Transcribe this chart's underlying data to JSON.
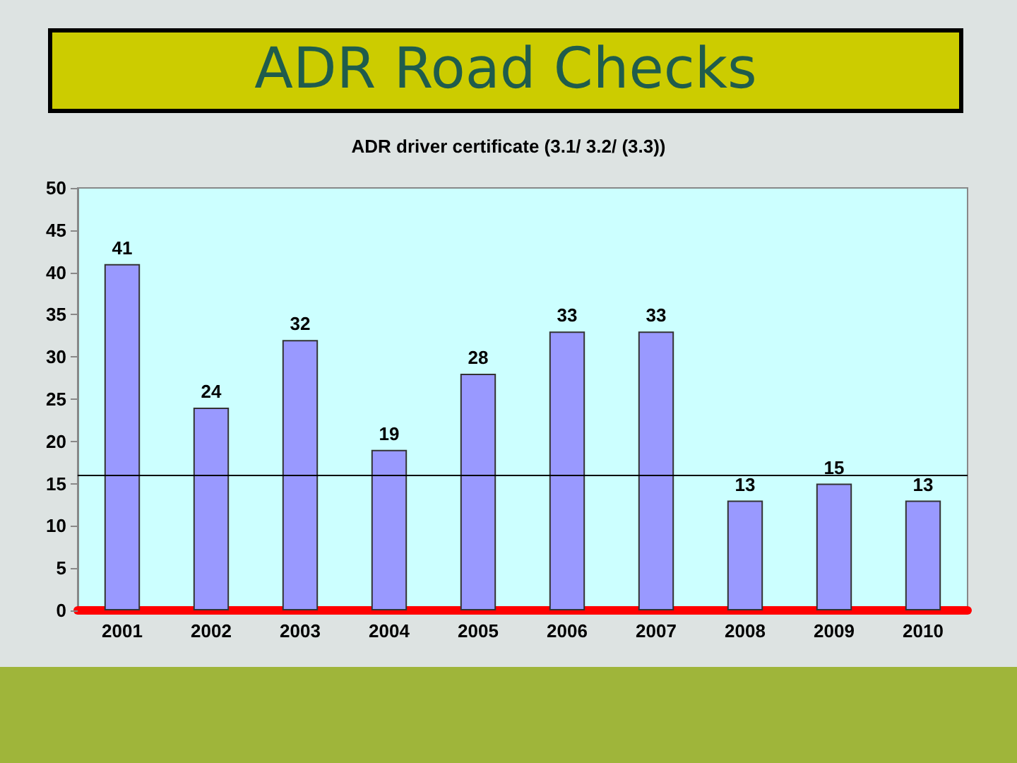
{
  "chart_data": {
    "type": "bar",
    "title": "ADR Road Checks",
    "subtitle": "ADR driver certificate (3.1/ 3.2/ (3.3))",
    "categories": [
      "2001",
      "2002",
      "2003",
      "2004",
      "2005",
      "2006",
      "2007",
      "2008",
      "2009",
      "2010"
    ],
    "values": [
      41,
      24,
      32,
      19,
      28,
      33,
      33,
      13,
      15,
      13
    ],
    "color": "#9999ff",
    "ylim": [
      0,
      50
    ],
    "yticks": [
      0,
      5,
      10,
      15,
      20,
      25,
      30,
      35,
      40,
      45,
      50
    ],
    "grid": false,
    "data_labels": true,
    "ref_lines": [
      {
        "axis": "y",
        "value": 16,
        "color": "#000000"
      }
    ]
  }
}
